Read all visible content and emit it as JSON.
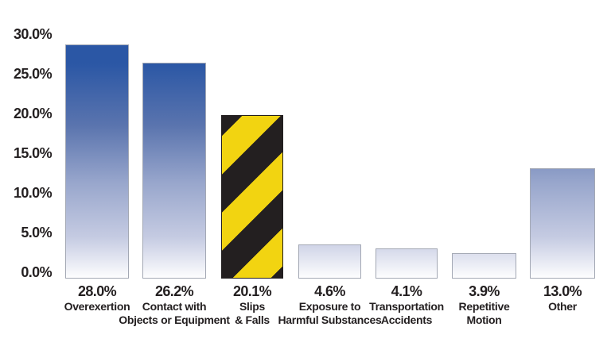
{
  "chart_data": {
    "type": "bar",
    "title": "",
    "xlabel": "",
    "ylabel": "",
    "ylim": [
      0,
      30
    ],
    "grid": false,
    "legend_position": "none",
    "y_tick_labels": [
      "30.0%",
      "25.0%",
      "20.0%",
      "15.0%",
      "10.0%",
      "5.0%",
      "0.0%"
    ],
    "categories": [
      "Overexertion",
      "Contact with Objects or Equipment",
      "Slips & Falls",
      "Exposure to Harmful Substances",
      "Transportation Accidents",
      "Repetitive Motion",
      "Other"
    ],
    "category_lines": [
      [
        "Overexertion"
      ],
      [
        "Contact with",
        "Objects or Equipment"
      ],
      [
        "Slips",
        "& Falls"
      ],
      [
        "Exposure to",
        "Harmful Substances"
      ],
      [
        "Transportation",
        "Accidents"
      ],
      [
        "Repetitive",
        "Motion"
      ],
      [
        "Other"
      ]
    ],
    "values": [
      28.0,
      26.2,
      20.1,
      4.6,
      4.1,
      3.9,
      13.0
    ],
    "bar_value_labels": [
      "28.0%",
      "26.2%",
      "20.1%",
      "4.6%",
      "4.1%",
      "3.9%",
      "13.0%"
    ],
    "bar_styles": [
      "blue-gradient",
      "blue-gradient",
      "hazard-stripes",
      "blue-gradient",
      "blue-gradient",
      "blue-gradient",
      "blue-gradient"
    ]
  },
  "colors": {
    "bar_gradient_top": "#2b57a5",
    "bar_gradient_bottom": "#ffffff",
    "bar_border": "#a3a8b4",
    "hazard_yellow": "#f2d411",
    "hazard_black": "#231f20",
    "text": "#231f20",
    "background": "#ffffff"
  }
}
